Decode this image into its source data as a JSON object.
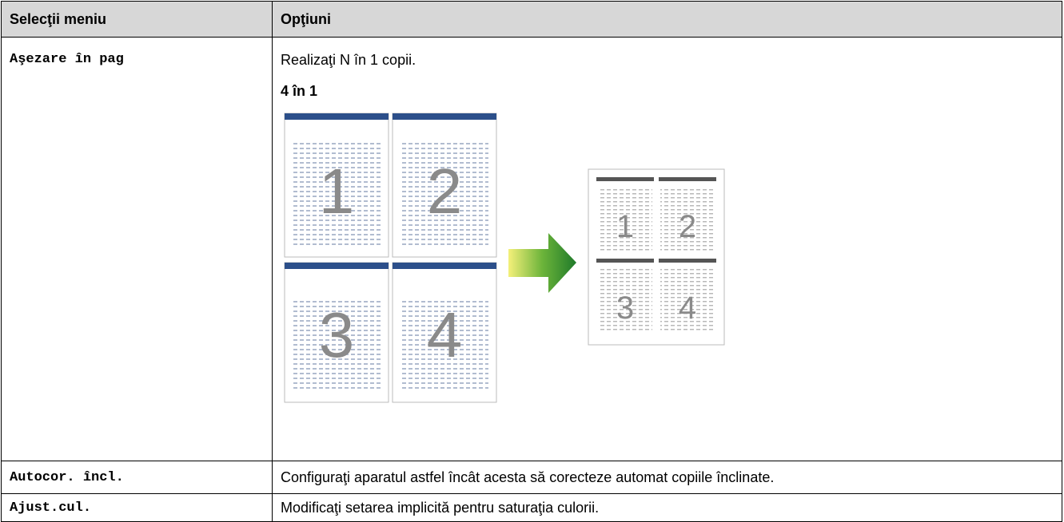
{
  "table": {
    "header": [
      "Selecţii meniu",
      "Opţiuni"
    ],
    "rows": [
      [
        "Aşezare în pag",
        "Realizaţi N în 1 copii."
      ],
      [
        "Autocor. încl.",
        "Configuraţi aparatul astfel încât acesta să corecteze automat copiile înclinate."
      ],
      [
        "Ajust.cul.",
        "Modificaţi setarea implicită pentru saturaţia culorii."
      ]
    ],
    "row_0_subheading": "4 în 1"
  },
  "illustration": {
    "source_pages": [
      "1",
      "2",
      "3",
      "4"
    ],
    "result_pages": [
      "1",
      "2",
      "3",
      "4"
    ]
  }
}
